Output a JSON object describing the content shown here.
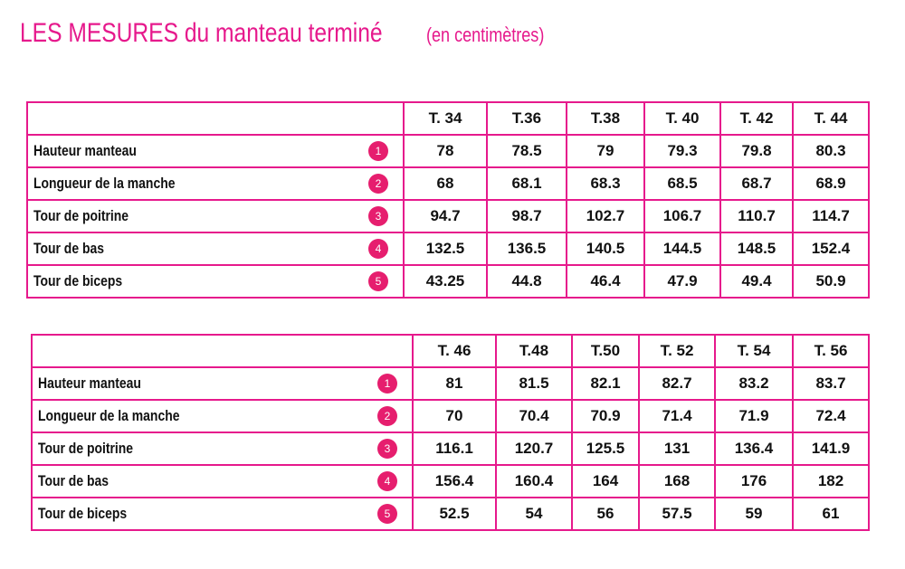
{
  "title": {
    "main": "LES MESURES du manteau terminé",
    "sub": "(en centimètres)"
  },
  "row_labels": [
    {
      "num": "1",
      "label": "Hauteur manteau"
    },
    {
      "num": "2",
      "label": "Longueur de la manche"
    },
    {
      "num": "3",
      "label": "Tour de poitrine"
    },
    {
      "num": "4",
      "label": "Tour de bas"
    },
    {
      "num": "5",
      "label": "Tour de biceps"
    }
  ],
  "table1": {
    "sizes": [
      "T. 34",
      "T.36",
      "T.38",
      "T. 40",
      "T. 42",
      "T. 44"
    ],
    "rows": [
      [
        "78",
        "78.5",
        "79",
        "79.3",
        "79.8",
        "80.3"
      ],
      [
        "68",
        "68.1",
        "68.3",
        "68.5",
        "68.7",
        "68.9"
      ],
      [
        "94.7",
        "98.7",
        "102.7",
        "106.7",
        "110.7",
        "114.7"
      ],
      [
        "132.5",
        "136.5",
        "140.5",
        "144.5",
        "148.5",
        "152.4"
      ],
      [
        "43.25",
        "44.8",
        "46.4",
        "47.9",
        "49.4",
        "50.9"
      ]
    ]
  },
  "table2": {
    "sizes": [
      "T. 46",
      "T.48",
      "T.50",
      "T. 52",
      "T. 54",
      "T. 56"
    ],
    "rows": [
      [
        "81",
        "81.5",
        "82.1",
        "82.7",
        "83.2",
        "83.7"
      ],
      [
        "70",
        "70.4",
        "70.9",
        "71.4",
        "71.9",
        "72.4"
      ],
      [
        "116.1",
        "120.7",
        "125.5",
        "131",
        "136.4",
        "141.9"
      ],
      [
        "156.4",
        "160.4",
        "164",
        "168",
        "176",
        "182"
      ],
      [
        "52.5",
        "54",
        "56",
        "57.5",
        "59",
        "61"
      ]
    ]
  }
}
